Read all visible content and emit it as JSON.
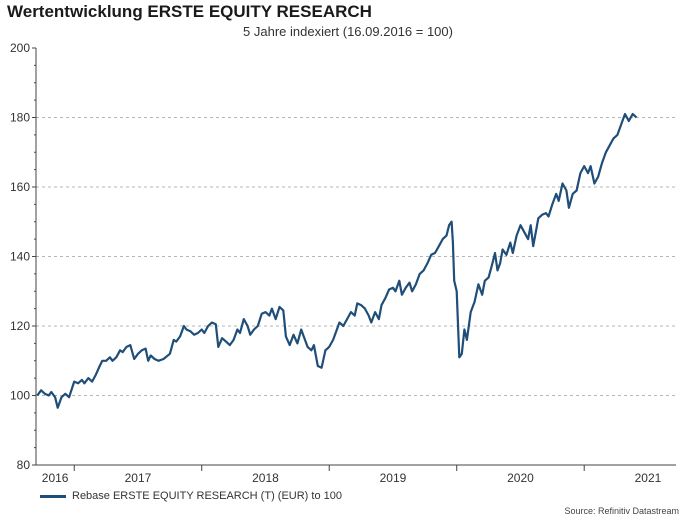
{
  "colors": {
    "series": "#1f4e79",
    "grid": "#b5b5b5",
    "axis": "#444444"
  },
  "chart_data": {
    "type": "line",
    "title": "Wertentwicklung ERSTE EQUITY RESEARCH",
    "subtitle": "5 Jahre indexiert (16.09.2016 = 100)",
    "xlabel": "",
    "ylabel": "",
    "xlim": [
      2016.7,
      2021.72
    ],
    "ylim": [
      80,
      200
    ],
    "yticks": [
      80,
      100,
      120,
      140,
      160,
      180,
      200
    ],
    "xtick_labels": [
      {
        "label": "2016",
        "x": 2016.85
      },
      {
        "label": "2017",
        "x": 2017.5
      },
      {
        "label": "2018",
        "x": 2018.5
      },
      {
        "label": "2019",
        "x": 2019.5
      },
      {
        "label": "2020",
        "x": 2020.5
      },
      {
        "label": "2021",
        "x": 2021.5
      }
    ],
    "xtick_marks": [
      2017,
      2018,
      2019,
      2020,
      2021
    ],
    "grid": "horizontal dashed",
    "legend_position": "bottom-left",
    "series": [
      {
        "name": "Rebase ERSTE EQUITY RESEARCH (T) (EUR) to 100",
        "points": [
          [
            2016.71,
            100
          ],
          [
            2016.74,
            101.5
          ],
          [
            2016.77,
            100.5
          ],
          [
            2016.8,
            100
          ],
          [
            2016.82,
            101
          ],
          [
            2016.85,
            99.5
          ],
          [
            2016.87,
            96.5
          ],
          [
            2016.9,
            99.5
          ],
          [
            2016.93,
            100.5
          ],
          [
            2016.96,
            99.5
          ],
          [
            2017.0,
            104
          ],
          [
            2017.03,
            103.5
          ],
          [
            2017.06,
            104.5
          ],
          [
            2017.08,
            103.5
          ],
          [
            2017.11,
            105
          ],
          [
            2017.14,
            104
          ],
          [
            2017.17,
            106
          ],
          [
            2017.2,
            108.5
          ],
          [
            2017.22,
            110
          ],
          [
            2017.25,
            110
          ],
          [
            2017.28,
            111
          ],
          [
            2017.3,
            110
          ],
          [
            2017.33,
            111
          ],
          [
            2017.36,
            113
          ],
          [
            2017.38,
            112.5
          ],
          [
            2017.41,
            114
          ],
          [
            2017.44,
            114.5
          ],
          [
            2017.47,
            110.5
          ],
          [
            2017.5,
            112
          ],
          [
            2017.53,
            113
          ],
          [
            2017.56,
            113.5
          ],
          [
            2017.58,
            110
          ],
          [
            2017.6,
            111.5
          ],
          [
            2017.63,
            110.5
          ],
          [
            2017.66,
            110
          ],
          [
            2017.7,
            110.5
          ],
          [
            2017.75,
            112
          ],
          [
            2017.78,
            116
          ],
          [
            2017.8,
            115.5
          ],
          [
            2017.83,
            117
          ],
          [
            2017.86,
            120
          ],
          [
            2017.88,
            119
          ],
          [
            2017.91,
            118.5
          ],
          [
            2017.94,
            117.5
          ],
          [
            2017.97,
            118
          ],
          [
            2018.0,
            119
          ],
          [
            2018.02,
            118
          ],
          [
            2018.05,
            120
          ],
          [
            2018.08,
            121
          ],
          [
            2018.11,
            120.5
          ],
          [
            2018.13,
            114
          ],
          [
            2018.16,
            116.5
          ],
          [
            2018.19,
            115.5
          ],
          [
            2018.22,
            114.5
          ],
          [
            2018.25,
            116
          ],
          [
            2018.28,
            119
          ],
          [
            2018.3,
            118
          ],
          [
            2018.33,
            122
          ],
          [
            2018.36,
            120
          ],
          [
            2018.38,
            117.5
          ],
          [
            2018.41,
            119
          ],
          [
            2018.44,
            120
          ],
          [
            2018.47,
            123.5
          ],
          [
            2018.5,
            124
          ],
          [
            2018.53,
            123
          ],
          [
            2018.55,
            125
          ],
          [
            2018.58,
            122
          ],
          [
            2018.61,
            125.5
          ],
          [
            2018.64,
            124.5
          ],
          [
            2018.66,
            117
          ],
          [
            2018.69,
            114.5
          ],
          [
            2018.72,
            117.5
          ],
          [
            2018.75,
            115
          ],
          [
            2018.78,
            119
          ],
          [
            2018.8,
            117
          ],
          [
            2018.83,
            114
          ],
          [
            2018.86,
            113
          ],
          [
            2018.88,
            114.5
          ],
          [
            2018.91,
            108.5
          ],
          [
            2018.94,
            108
          ],
          [
            2018.97,
            113
          ],
          [
            2019.0,
            114
          ],
          [
            2019.03,
            116
          ],
          [
            2019.06,
            119
          ],
          [
            2019.08,
            121
          ],
          [
            2019.11,
            120
          ],
          [
            2019.14,
            122
          ],
          [
            2019.17,
            124
          ],
          [
            2019.2,
            123
          ],
          [
            2019.22,
            126.5
          ],
          [
            2019.25,
            126
          ],
          [
            2019.28,
            125
          ],
          [
            2019.31,
            123
          ],
          [
            2019.33,
            121
          ],
          [
            2019.36,
            124
          ],
          [
            2019.39,
            122
          ],
          [
            2019.41,
            126
          ],
          [
            2019.44,
            128
          ],
          [
            2019.47,
            130.5
          ],
          [
            2019.5,
            131
          ],
          [
            2019.52,
            130
          ],
          [
            2019.55,
            133
          ],
          [
            2019.57,
            129
          ],
          [
            2019.6,
            131
          ],
          [
            2019.63,
            132.5
          ],
          [
            2019.65,
            130
          ],
          [
            2019.68,
            132
          ],
          [
            2019.71,
            135
          ],
          [
            2019.74,
            136
          ],
          [
            2019.77,
            138
          ],
          [
            2019.8,
            140.5
          ],
          [
            2019.83,
            141
          ],
          [
            2019.86,
            143
          ],
          [
            2019.89,
            145
          ],
          [
            2019.92,
            146
          ],
          [
            2019.94,
            149
          ],
          [
            2019.96,
            150
          ],
          [
            2019.97,
            144
          ],
          [
            2019.98,
            133
          ],
          [
            2020.0,
            130
          ],
          [
            2020.02,
            111
          ],
          [
            2020.04,
            112
          ],
          [
            2020.06,
            119
          ],
          [
            2020.08,
            116
          ],
          [
            2020.11,
            124
          ],
          [
            2020.14,
            127
          ],
          [
            2020.17,
            132
          ],
          [
            2020.2,
            129
          ],
          [
            2020.22,
            133
          ],
          [
            2020.25,
            134
          ],
          [
            2020.28,
            138
          ],
          [
            2020.3,
            141
          ],
          [
            2020.32,
            136
          ],
          [
            2020.34,
            138
          ],
          [
            2020.36,
            142
          ],
          [
            2020.39,
            140.5
          ],
          [
            2020.42,
            144
          ],
          [
            2020.44,
            141
          ],
          [
            2020.47,
            146
          ],
          [
            2020.5,
            149
          ],
          [
            2020.53,
            147
          ],
          [
            2020.56,
            145
          ],
          [
            2020.58,
            149
          ],
          [
            2020.6,
            143
          ],
          [
            2020.62,
            147
          ],
          [
            2020.64,
            151
          ],
          [
            2020.67,
            152
          ],
          [
            2020.7,
            152.5
          ],
          [
            2020.72,
            151.5
          ],
          [
            2020.75,
            155
          ],
          [
            2020.78,
            158
          ],
          [
            2020.8,
            156
          ],
          [
            2020.83,
            161
          ],
          [
            2020.86,
            159
          ],
          [
            2020.88,
            154
          ],
          [
            2020.91,
            158
          ],
          [
            2020.94,
            159
          ],
          [
            2020.97,
            164
          ],
          [
            2021.0,
            166
          ],
          [
            2021.03,
            164
          ],
          [
            2021.05,
            166
          ],
          [
            2021.08,
            161
          ],
          [
            2021.11,
            163
          ],
          [
            2021.14,
            167
          ],
          [
            2021.17,
            170
          ],
          [
            2021.2,
            172
          ],
          [
            2021.23,
            174
          ],
          [
            2021.26,
            175
          ],
          [
            2021.29,
            178
          ],
          [
            2021.32,
            181
          ],
          [
            2021.35,
            179
          ],
          [
            2021.38,
            181
          ],
          [
            2021.41,
            180
          ]
        ]
      }
    ]
  },
  "source": "Source: Refinitiv Datastream"
}
